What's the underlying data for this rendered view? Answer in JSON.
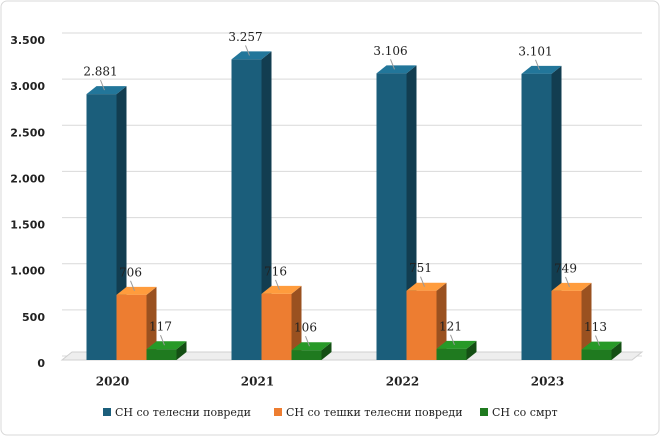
{
  "chart_data": {
    "type": "bar3d",
    "categories": [
      "2020",
      "2021",
      "2022",
      "2023"
    ],
    "series": [
      {
        "name": "СН со телесни повреди",
        "color": "#1b5e7b",
        "values": [
          2881,
          3257,
          3106,
          3101
        ],
        "value_labels": [
          "2.881",
          "3.257",
          "3.106",
          "3.101"
        ]
      },
      {
        "name": "СН со тешки телесни повреди",
        "color": "#ed7d31",
        "values": [
          706,
          716,
          751,
          749
        ]
      },
      {
        "name": "СН со смрт",
        "color": "#1f7a1f",
        "values": [
          117,
          106,
          121,
          113
        ]
      }
    ],
    "ylim": [
      0,
      3500
    ],
    "yticks": [
      {
        "value": 0,
        "label": "0"
      },
      {
        "value": 500,
        "label": "500"
      },
      {
        "value": 1000,
        "label": "1.000"
      },
      {
        "value": 1500,
        "label": "1.500"
      },
      {
        "value": 2000,
        "label": "2.000"
      },
      {
        "value": 2500,
        "label": "2.500"
      },
      {
        "value": 3000,
        "label": "3.000"
      },
      {
        "value": 3500,
        "label": "3.500"
      }
    ],
    "grid": true
  }
}
